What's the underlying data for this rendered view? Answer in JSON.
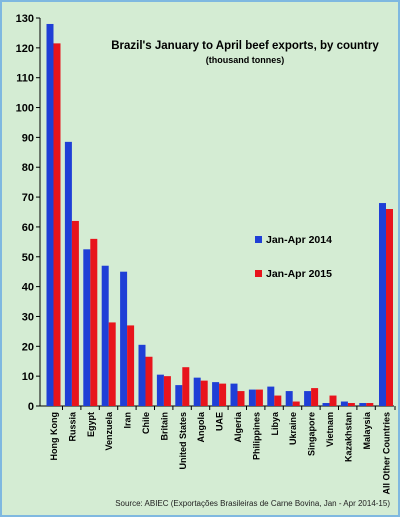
{
  "chart_data": {
    "type": "bar",
    "title": "Brazil's January to April beef exports, by country",
    "subtitle": "(thousand tonnes)",
    "ylim": [
      0,
      130
    ],
    "yticks": [
      0,
      10,
      20,
      30,
      40,
      50,
      60,
      70,
      80,
      90,
      100,
      110,
      120,
      130
    ],
    "grid": false,
    "legend_position": "right",
    "categories": [
      "Hong Kong",
      "Russia",
      "Egypt",
      "Venzuela",
      "Iran",
      "Chile",
      "Britain",
      "United States",
      "Angola",
      "UAE",
      "Algeria",
      "Philippines",
      "Libya",
      "Ukraine",
      "Singapore",
      "Vietnam",
      "Kazakhstan",
      "Malaysia",
      "All Other Countries"
    ],
    "series": [
      {
        "name": "Jan-Apr 2014",
        "color": "#1f3fd6",
        "values": [
          128,
          88.5,
          52.5,
          47,
          45,
          20.5,
          10.5,
          7,
          9.5,
          8,
          7.5,
          5.5,
          6.5,
          5,
          5,
          1,
          1.5,
          1,
          68
        ]
      },
      {
        "name": "Jan-Apr 2015",
        "color": "#e8141c",
        "values": [
          121.5,
          62,
          56,
          28,
          27,
          16.5,
          10,
          13,
          8.5,
          7.5,
          5,
          5.5,
          3.5,
          1.5,
          6,
          3.5,
          1,
          1,
          66
        ]
      }
    ],
    "source": "Source: ABIEC (Exportações Brasileiras de Carne Bovina, Jan - Apr 2014-15)"
  }
}
